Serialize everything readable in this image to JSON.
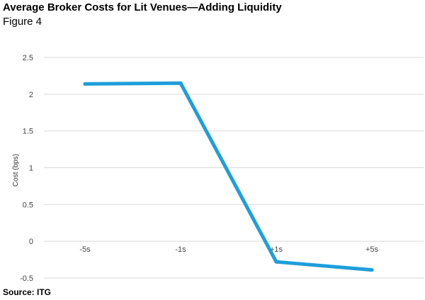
{
  "header": {
    "title": "Average Broker Costs for Lit Venues—Adding Liquidity",
    "subtitle": "Figure 4"
  },
  "footer": {
    "source": "Source: ITG"
  },
  "colors": {
    "line": "#1e9fdb",
    "grid": "#d9d9d9",
    "tick_text": "#444444"
  },
  "chart_data": {
    "type": "line",
    "title": "Average Broker Costs for Lit Venues—Adding Liquidity",
    "xlabel": "",
    "ylabel": "Cost (bps)",
    "categories": [
      "-5s",
      "-1s",
      "+1s",
      "+5s"
    ],
    "series": [
      {
        "values": [
          2.14,
          2.15,
          -0.28,
          -0.39
        ]
      }
    ],
    "ylim": [
      -0.5,
      2.5
    ],
    "yticks": [
      "2.5",
      "2",
      "1.5",
      "1",
      "0.5",
      "0",
      "-0.5"
    ],
    "ytick_values": [
      2.5,
      2,
      1.5,
      1,
      0.5,
      0,
      -0.5
    ],
    "grid": true,
    "legend": "none"
  }
}
